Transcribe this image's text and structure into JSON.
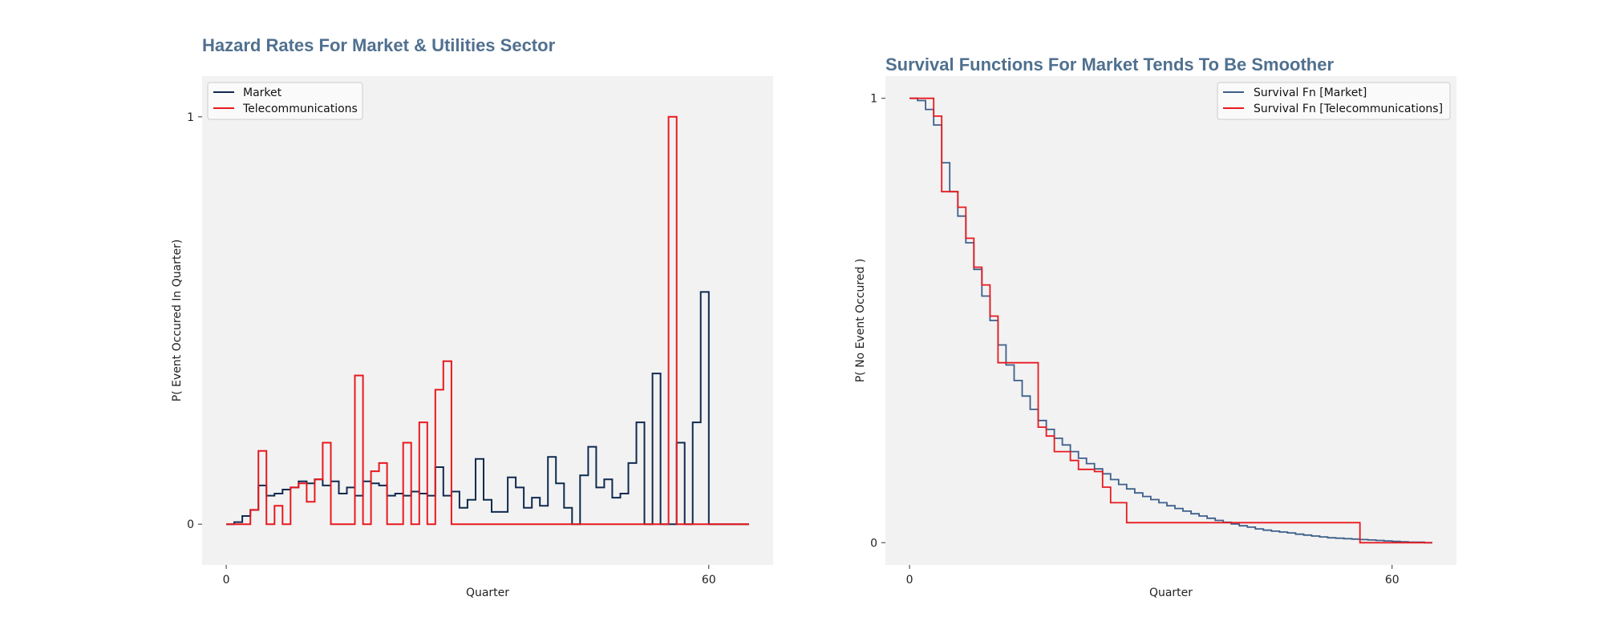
{
  "chart_data": [
    {
      "type": "line",
      "step": true,
      "title": "Hazard Rates For Market & Utilities Sector",
      "xlabel": "Quarter",
      "ylabel": "P( Event Occured In Quarter)",
      "xlim": [
        -3,
        68
      ],
      "ylim": [
        -0.1,
        1.1
      ],
      "xticks": [
        0,
        60
      ],
      "yticks": [
        0,
        1
      ],
      "grid": false,
      "legend_position": "top-left",
      "background": "#f2f2f2",
      "series": [
        {
          "name": "Market",
          "color": "#0f2a4f",
          "x": [
            0,
            1,
            2,
            3,
            4,
            5,
            6,
            7,
            8,
            9,
            10,
            11,
            12,
            13,
            14,
            15,
            16,
            17,
            18,
            19,
            20,
            21,
            22,
            23,
            24,
            25,
            26,
            27,
            28,
            29,
            30,
            31,
            32,
            33,
            34,
            35,
            36,
            37,
            38,
            39,
            40,
            41,
            42,
            43,
            44,
            45,
            46,
            47,
            48,
            49,
            50,
            51,
            52,
            53,
            54,
            55,
            56,
            57,
            58,
            59,
            60,
            61,
            62,
            63,
            64,
            65
          ],
          "y": [
            0,
            0.005,
            0.02,
            0.035,
            0.095,
            0.07,
            0.075,
            0.085,
            0.09,
            0.105,
            0.1,
            0.11,
            0.095,
            0.105,
            0.075,
            0.09,
            0.07,
            0.105,
            0.1,
            0.095,
            0.07,
            0.075,
            0.07,
            0.08,
            0.075,
            0.07,
            0.14,
            0.07,
            0.08,
            0.04,
            0.06,
            0.16,
            0.06,
            0.03,
            0.03,
            0.115,
            0.09,
            0.04,
            0.065,
            0.045,
            0.165,
            0.1,
            0.04,
            0.0,
            0.12,
            0.19,
            0.09,
            0.11,
            0.065,
            0.075,
            0.15,
            0.25,
            0.0,
            0.37,
            0.0,
            0.0,
            0.2,
            0.0,
            0.25,
            0.57,
            0.0,
            0.0,
            0.0,
            0.0,
            0.0,
            0.0
          ]
        },
        {
          "name": "Telecommunications",
          "color": "#e8191f",
          "x": [
            0,
            1,
            2,
            3,
            4,
            5,
            6,
            7,
            8,
            9,
            10,
            11,
            12,
            13,
            14,
            15,
            16,
            17,
            18,
            19,
            20,
            21,
            22,
            23,
            24,
            25,
            26,
            27,
            28,
            29,
            30,
            31,
            32,
            33,
            34,
            35,
            36,
            37,
            38,
            39,
            40,
            41,
            42,
            43,
            44,
            45,
            46,
            47,
            48,
            49,
            50,
            51,
            52,
            53,
            54,
            55,
            56,
            57,
            58,
            59,
            60,
            61,
            62,
            63,
            64,
            65
          ],
          "y": [
            0,
            0,
            0,
            0.035,
            0.18,
            0,
            0.045,
            0,
            0.09,
            0.1,
            0.055,
            0.11,
            0.2,
            0,
            0,
            0,
            0.365,
            0,
            0.13,
            0.15,
            0,
            0,
            0.2,
            0,
            0.25,
            0,
            0.33,
            0.4,
            0,
            0,
            0,
            0,
            0,
            0,
            0,
            0,
            0,
            0,
            0,
            0,
            0,
            0,
            0,
            0,
            0,
            0,
            0,
            0,
            0,
            0,
            0,
            0,
            0,
            0,
            0,
            1,
            0,
            0,
            0,
            0,
            0,
            0,
            0,
            0,
            0,
            0
          ]
        }
      ]
    },
    {
      "type": "line",
      "step": true,
      "title": "Survival Functions For Market Tends To Be Smoother",
      "xlabel": "Quarter",
      "ylabel": "P( No Event Occured )",
      "xlim": [
        -3,
        68
      ],
      "ylim": [
        -0.05,
        1.05
      ],
      "xticks": [
        0,
        60
      ],
      "yticks": [
        0,
        1
      ],
      "grid": false,
      "legend_position": "top-right",
      "background": "#f2f2f2",
      "series": [
        {
          "name": "Survival Fn [Market]",
          "color": "#3d5f8a",
          "x": [
            0,
            1,
            2,
            3,
            4,
            5,
            6,
            7,
            8,
            9,
            10,
            11,
            12,
            13,
            14,
            15,
            16,
            17,
            18,
            19,
            20,
            21,
            22,
            23,
            24,
            25,
            26,
            27,
            28,
            29,
            30,
            31,
            32,
            33,
            34,
            35,
            36,
            37,
            38,
            39,
            40,
            41,
            42,
            43,
            44,
            45,
            46,
            47,
            48,
            49,
            50,
            51,
            52,
            53,
            54,
            55,
            56,
            57,
            58,
            59,
            60,
            61,
            62,
            63,
            64,
            65
          ],
          "y": [
            1.0,
            0.995,
            0.975,
            0.94,
            0.855,
            0.79,
            0.735,
            0.675,
            0.615,
            0.555,
            0.5,
            0.445,
            0.4,
            0.365,
            0.33,
            0.3,
            0.275,
            0.255,
            0.235,
            0.22,
            0.205,
            0.19,
            0.178,
            0.166,
            0.155,
            0.142,
            0.131,
            0.121,
            0.112,
            0.104,
            0.097,
            0.09,
            0.083,
            0.077,
            0.071,
            0.065,
            0.06,
            0.055,
            0.05,
            0.046,
            0.042,
            0.038,
            0.035,
            0.031,
            0.028,
            0.026,
            0.024,
            0.022,
            0.019,
            0.017,
            0.015,
            0.013,
            0.011,
            0.01,
            0.009,
            0.008,
            0.007,
            0.006,
            0.005,
            0.004,
            0.003,
            0.002,
            0.001,
            0.001,
            0.0,
            0.0
          ]
        },
        {
          "name": "Survival Fn [Telecommunications]",
          "color": "#e8191f",
          "x": [
            0,
            1,
            2,
            3,
            4,
            5,
            6,
            7,
            8,
            9,
            10,
            11,
            12,
            13,
            14,
            15,
            16,
            17,
            18,
            19,
            20,
            21,
            22,
            23,
            24,
            25,
            26,
            27,
            28,
            29,
            30,
            31,
            32,
            33,
            34,
            35,
            36,
            37,
            38,
            39,
            40,
            41,
            42,
            43,
            44,
            45,
            46,
            47,
            48,
            49,
            50,
            51,
            52,
            53,
            54,
            55,
            56,
            57,
            58,
            59,
            60,
            61,
            62,
            63,
            64,
            65
          ],
          "y": [
            1.0,
            1.0,
            1.0,
            0.96,
            0.79,
            0.79,
            0.755,
            0.685,
            0.62,
            0.58,
            0.51,
            0.405,
            0.405,
            0.405,
            0.405,
            0.405,
            0.26,
            0.24,
            0.205,
            0.205,
            0.185,
            0.165,
            0.165,
            0.16,
            0.125,
            0.09,
            0.09,
            0.045,
            0.045,
            0.045,
            0.045,
            0.045,
            0.045,
            0.045,
            0.045,
            0.045,
            0.045,
            0.045,
            0.045,
            0.045,
            0.045,
            0.045,
            0.045,
            0.045,
            0.045,
            0.045,
            0.045,
            0.045,
            0.045,
            0.045,
            0.045,
            0.045,
            0.045,
            0.045,
            0.045,
            0.045,
            0.0,
            0.0,
            0.0,
            0.0,
            0.0,
            0.0,
            0.0,
            0.0,
            0.0,
            0.0
          ]
        }
      ]
    }
  ]
}
